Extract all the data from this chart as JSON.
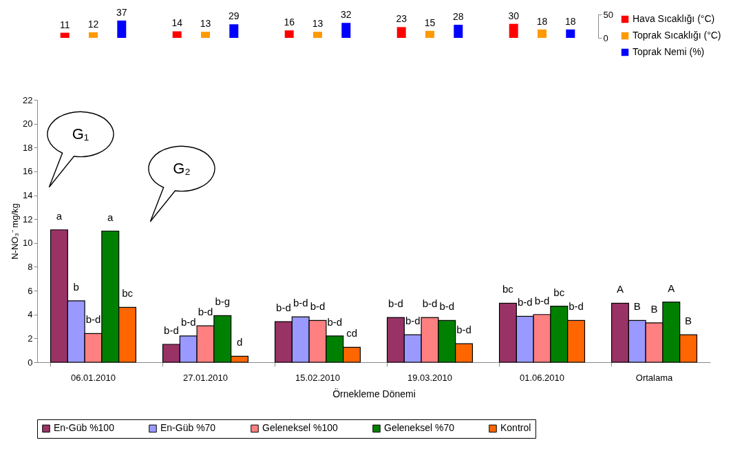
{
  "chart_data": [
    {
      "type": "bar",
      "categories": [
        null,
        null,
        null,
        null,
        null
      ],
      "ylim": [
        0,
        50
      ],
      "yticks": [
        0,
        50
      ],
      "data_labels": true,
      "legend": "right",
      "series": [
        {
          "name": "Hava Sıcaklığı (°C)",
          "color": "#ff0000",
          "values": [
            11,
            14,
            16,
            23,
            30
          ]
        },
        {
          "name": "Toprak Sıcaklığı (°C)",
          "color": "#ff9900",
          "values": [
            12,
            13,
            13,
            15,
            18
          ]
        },
        {
          "name": "Toprak Nemi (%)",
          "color": "#0000ff",
          "values": [
            37,
            29,
            32,
            28,
            18
          ]
        }
      ]
    },
    {
      "type": "bar",
      "categories": [
        "06.01.2010",
        "27.01.2010",
        "15.02.2010",
        "19.03.2010",
        "01.06.2010",
        "Ortalama"
      ],
      "xlabel": "Örnekleme Dönemi",
      "ylabel": "N-NO₃⁻ mg/kg",
      "ylim": [
        0,
        22
      ],
      "yticks": [
        0,
        2,
        4,
        6,
        8,
        10,
        12,
        14,
        16,
        18,
        20,
        22
      ],
      "legend": "bottom",
      "annotations": [
        "G₁",
        "G₂"
      ],
      "series": [
        {
          "name": "En-Güb %100",
          "color": "#993366",
          "values": [
            11.1,
            1.5,
            3.4,
            3.75,
            4.95,
            4.95
          ],
          "value_labels": [
            "a",
            "b-d",
            "b-d",
            "b-d",
            "bc",
            "A"
          ]
        },
        {
          "name": "En-Güb %70",
          "color": "#9999ff",
          "values": [
            5.15,
            2.2,
            3.8,
            2.3,
            3.85,
            3.5
          ],
          "value_labels": [
            "b",
            "b-d",
            "b-d",
            "b-d",
            "b-d",
            "B"
          ]
        },
        {
          "name": "Geleneksel %100",
          "color": "#ff8080",
          "values": [
            2.4,
            3.05,
            3.5,
            3.75,
            4.0,
            3.3
          ],
          "value_labels": [
            "b-d",
            "b-d",
            "b-d",
            "b-d",
            "b-d",
            "B"
          ]
        },
        {
          "name": "Geleneksel %70",
          "color": "#008000",
          "values": [
            11.0,
            3.9,
            2.2,
            3.5,
            4.7,
            5.05
          ],
          "value_labels": [
            "a",
            "b-g",
            "b-d",
            "b-d",
            "bc",
            "A"
          ]
        },
        {
          "name": "Kontrol",
          "color": "#ff6600",
          "values": [
            4.6,
            0.5,
            1.25,
            1.55,
            3.5,
            2.3
          ],
          "value_labels": [
            "bc",
            "d",
            "cd",
            "b-d",
            "b-d",
            "B"
          ]
        }
      ]
    }
  ]
}
